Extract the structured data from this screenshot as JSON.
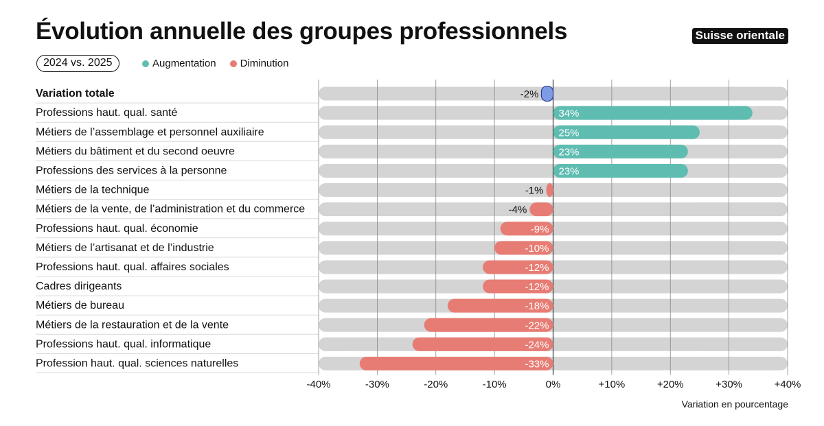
{
  "title": "Évolution annuelle des groupes professionnels",
  "region": "Suisse orientale",
  "period": "2024 vs. 2025",
  "legend": {
    "increase_label": "Augmentation",
    "decrease_label": "Diminution"
  },
  "colors": {
    "increase": "#5fbcb1",
    "decrease": "#e77c74",
    "total": "#7d9be6",
    "track": "#d4d4d4"
  },
  "chart_data": {
    "type": "bar",
    "orientation": "horizontal",
    "xlabel": "Variation en pourcentage",
    "xlim": [
      -40,
      40
    ],
    "ticks": [
      "-40%",
      "-30%",
      "-20%",
      "-10%",
      "0%",
      "+10%",
      "+20%",
      "+30%",
      "+40%"
    ],
    "grid": true,
    "legend_placement": "top-left",
    "categories": [
      "Variation totale",
      "Professions haut. qual. santé",
      "Métiers de l’assemblage et personnel auxiliaire",
      "Métiers du bâtiment et du second oeuvre",
      "Professions des services à la personne",
      "Métiers de la technique",
      "Métiers de la vente, de l’administration et du commerce",
      "Professions haut. qual. économie",
      "Métiers de l’artisanat et de l’industrie",
      "Professions haut. qual. affaires sociales",
      "Cadres dirigeants",
      "Métiers de bureau",
      "Métiers de la restauration et de la vente",
      "Professions haut. qual. informatique",
      "Profession haut. qual. sciences naturelles"
    ],
    "values": [
      -2,
      34,
      25,
      23,
      23,
      -1,
      -4,
      -9,
      -10,
      -12,
      -12,
      -18,
      -22,
      -24,
      -33
    ],
    "labels": [
      "-2%",
      "34%",
      "25%",
      "23%",
      "23%",
      "-1%",
      "-4%",
      "-9%",
      "-10%",
      "-12%",
      "-12%",
      "-18%",
      "-22%",
      "-24%",
      "-33%"
    ]
  }
}
